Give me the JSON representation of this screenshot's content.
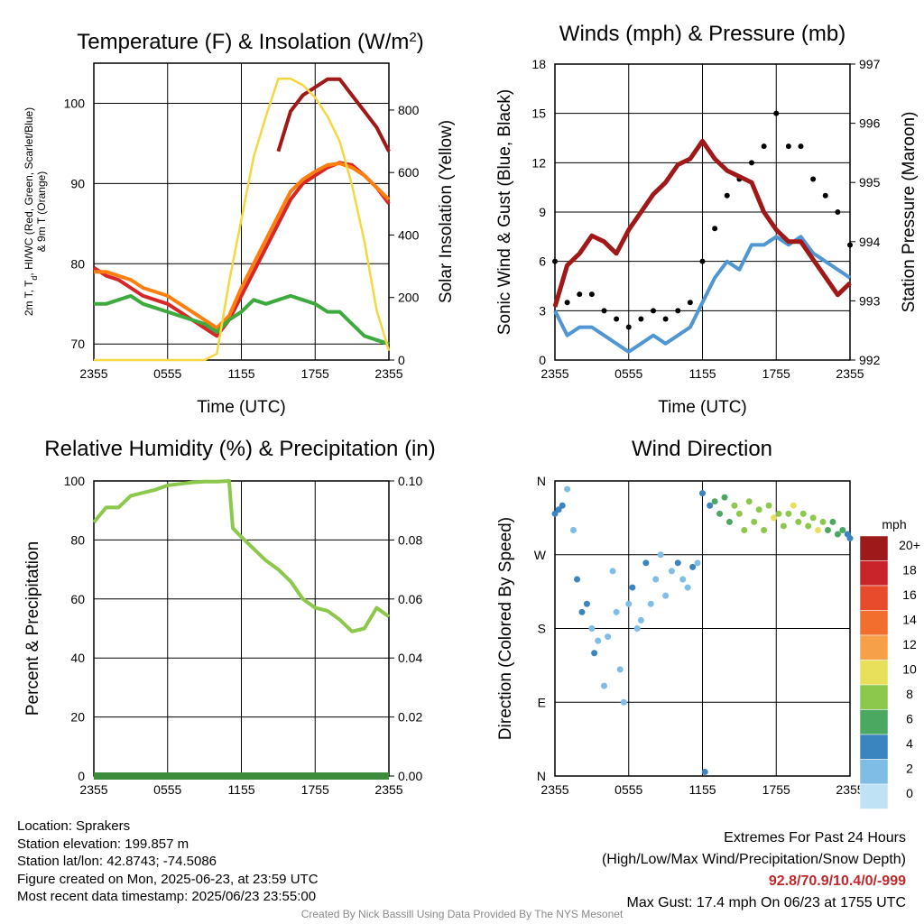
{
  "chart_data": [
    {
      "type": "line",
      "title": "Temperature (F) & Insolation (W/m",
      "title_sup": "2",
      "title_end": ")",
      "xlabel": "Time (UTC)",
      "ylabel_left": [
        "2m T, T",
        "d",
        ", HI/WC (Red, Green, Scarlet/Blue)",
        "& 9m T (Orange)"
      ],
      "ylabel_right": "Solar Insolation (Yellow)",
      "x_ticks": [
        "2355",
        "0555",
        "1155",
        "1755",
        "2355"
      ],
      "ylim_left": [
        68,
        105
      ],
      "y_ticks_left": [
        70,
        80,
        90,
        100
      ],
      "ylim_right": [
        0,
        950
      ],
      "y_ticks_right": [
        0,
        200,
        400,
        600,
        800
      ],
      "series": [
        {
          "name": "2m T",
          "color": "#d62728",
          "axis": "left",
          "x": [
            0,
            1,
            2,
            3,
            4,
            5,
            6,
            7,
            8,
            9,
            10,
            11,
            12,
            13,
            14,
            15,
            16,
            17,
            18,
            19,
            20,
            21,
            22,
            23,
            24
          ],
          "values": [
            79.5,
            78.5,
            78,
            77,
            76,
            75.5,
            75,
            74,
            73,
            72,
            71,
            73,
            76,
            79,
            82,
            85,
            88,
            90,
            91,
            92,
            92.6,
            92.3,
            91,
            89.5,
            87.5
          ]
        },
        {
          "name": "9m T",
          "color": "#ff7f0e",
          "axis": "left",
          "x": [
            0,
            1,
            2,
            3,
            4,
            5,
            6,
            7,
            8,
            9,
            10,
            11,
            12,
            13,
            14,
            15,
            16,
            17,
            18,
            19,
            20,
            21,
            22,
            23,
            24
          ],
          "values": [
            79,
            79,
            78.5,
            78,
            77,
            76.5,
            76,
            75,
            74,
            73,
            72,
            73.5,
            77,
            80,
            83,
            86,
            89,
            90.5,
            91.5,
            92.3,
            92.5,
            92,
            91,
            89.5,
            88
          ]
        },
        {
          "name": "Td",
          "color": "#3caa3c",
          "axis": "left",
          "x": [
            0,
            1,
            2,
            3,
            4,
            5,
            6,
            7,
            8,
            9,
            10,
            11,
            12,
            13,
            14,
            15,
            16,
            17,
            18,
            19,
            20,
            21,
            22,
            23,
            24
          ],
          "values": [
            75,
            75,
            75.5,
            76,
            75,
            74.5,
            74,
            73.5,
            73,
            72.5,
            71.5,
            73,
            74,
            75.5,
            75,
            75.5,
            76,
            75.5,
            75,
            74,
            74,
            72.5,
            71,
            70.5,
            70
          ]
        },
        {
          "name": "HI",
          "color": "#a01818",
          "axis": "left",
          "x": [
            15,
            16,
            17,
            18,
            19,
            20,
            21,
            22,
            23,
            24
          ],
          "values": [
            94,
            99,
            101,
            102,
            103,
            103,
            101,
            99,
            97,
            94
          ]
        },
        {
          "name": "Insolation",
          "color": "#f5d742",
          "axis": "right",
          "x": [
            0,
            1,
            2,
            3,
            4,
            5,
            6,
            7,
            8,
            9,
            10,
            11,
            12,
            13,
            14,
            15,
            16,
            17,
            18,
            19,
            20,
            21,
            22,
            23,
            24
          ],
          "values": [
            0,
            0,
            0,
            0,
            0,
            0,
            0,
            0,
            0,
            0,
            20,
            250,
            450,
            650,
            780,
            900,
            900,
            880,
            840,
            780,
            700,
            560,
            380,
            160,
            30
          ]
        }
      ]
    },
    {
      "type": "line",
      "title": "Winds (mph) & Pressure (mb)",
      "xlabel": "Time (UTC)",
      "ylabel_left": "Sonic Wind & Gust (Blue, Black)",
      "ylabel_right": "Station Pressure (Maroon)",
      "x_ticks": [
        "2355",
        "0555",
        "1155",
        "1755",
        "2355"
      ],
      "ylim_left": [
        0,
        18
      ],
      "y_ticks_left": [
        0,
        3,
        6,
        9,
        12,
        15,
        18
      ],
      "ylim_right": [
        992,
        997
      ],
      "y_ticks_right": [
        992,
        993,
        994,
        995,
        996,
        997
      ],
      "series": [
        {
          "name": "Wind",
          "color": "#4f96d2",
          "axis": "left",
          "x": [
            0,
            1,
            2,
            3,
            4,
            5,
            6,
            7,
            8,
            9,
            10,
            11,
            12,
            13,
            14,
            15,
            16,
            17,
            18,
            19,
            20,
            21,
            22,
            23,
            24
          ],
          "values": [
            3,
            1.5,
            2,
            2,
            1.5,
            1,
            0.5,
            1,
            1.5,
            1,
            1.5,
            2,
            3.5,
            5,
            6,
            5.5,
            7,
            7,
            7.5,
            7,
            7.5,
            6.5,
            6,
            5.5,
            5
          ]
        },
        {
          "name": "Gust",
          "color": "#000000",
          "axis": "left",
          "x": [
            0,
            1,
            2,
            3,
            4,
            5,
            6,
            7,
            8,
            9,
            10,
            11,
            12,
            13,
            14,
            15,
            16,
            17,
            18,
            19,
            20,
            21,
            22,
            23,
            24
          ],
          "values": [
            6,
            3.5,
            4,
            4,
            3,
            2.5,
            2,
            2.5,
            3,
            2.5,
            3,
            3.5,
            6,
            8,
            10,
            11,
            12,
            13,
            15,
            13,
            13,
            11,
            10,
            9,
            7
          ]
        },
        {
          "name": "Pressure",
          "color": "#a01818",
          "axis": "right",
          "x": [
            0,
            1,
            2,
            3,
            4,
            5,
            6,
            7,
            8,
            9,
            10,
            11,
            12,
            13,
            14,
            15,
            16,
            17,
            18,
            19,
            20,
            21,
            22,
            23,
            24
          ],
          "values": [
            992.9,
            993.6,
            993.8,
            994.1,
            994.0,
            993.8,
            994.2,
            994.5,
            994.8,
            995.0,
            995.3,
            995.4,
            995.7,
            995.4,
            995.2,
            995.1,
            995.0,
            994.5,
            994.2,
            994.0,
            994.0,
            993.7,
            993.4,
            993.1,
            993.3
          ]
        }
      ]
    },
    {
      "type": "line",
      "title": "Relative Humidity (%) & Precipitation (in)",
      "xlabel": "",
      "ylabel_left": "Percent & Precipitation",
      "x_ticks": [
        "2355",
        "0555",
        "1155",
        "1755",
        "2355"
      ],
      "ylim_left": [
        0,
        100
      ],
      "y_ticks_left": [
        0,
        20,
        40,
        60,
        80,
        100
      ],
      "ylim_right": [
        0,
        0.1
      ],
      "y_ticks_right": [
        "0.00",
        "0.02",
        "0.04",
        "0.06",
        "0.08",
        "0.10"
      ],
      "series": [
        {
          "name": "Relative Humidity",
          "color": "#8cc84b",
          "axis": "left",
          "x": [
            0,
            1,
            2,
            3,
            4,
            5,
            6,
            7,
            8,
            9,
            10,
            11,
            11.3,
            12,
            13,
            14,
            15,
            16,
            17,
            18,
            19,
            20,
            21,
            22,
            23,
            24
          ],
          "values": [
            86,
            91,
            91,
            95,
            96,
            97,
            98.5,
            99,
            99.5,
            99.8,
            99.8,
            100,
            84,
            81,
            77,
            73,
            70,
            66,
            60,
            57,
            56,
            53,
            49,
            50,
            57,
            54
          ]
        },
        {
          "name": "Precipitation",
          "color": "#3c8c3c",
          "axis": "right",
          "x": [
            0,
            24
          ],
          "values": [
            0,
            0
          ]
        }
      ]
    },
    {
      "type": "scatter",
      "title": "Wind Direction",
      "ylabel_left": "Direction (Colored By Speed)",
      "x_ticks": [
        "2355",
        "0555",
        "1155",
        "1755",
        "2355"
      ],
      "y_ticks_left": [
        "N",
        "E",
        "S",
        "W",
        "N"
      ],
      "ylim_left": [
        0,
        360
      ],
      "legend_title": "mph",
      "legend_labels": [
        "20+",
        "18",
        "16",
        "14",
        "12",
        "10",
        "8",
        "6",
        "4",
        "2",
        "0"
      ],
      "legend_colors": [
        "#9e1a1a",
        "#c8242a",
        "#e84a2c",
        "#f26e2e",
        "#f7a04a",
        "#e8e05a",
        "#8cc84b",
        "#4aa860",
        "#3a84c0",
        "#7fbce6",
        "#bfe3f5"
      ],
      "points": [
        {
          "x": 0.0,
          "dir": 320,
          "speed": 4
        },
        {
          "x": 0.3,
          "dir": 325,
          "speed": 4
        },
        {
          "x": 0.6,
          "dir": 330,
          "speed": 3
        },
        {
          "x": 1.0,
          "dir": 350,
          "speed": 1
        },
        {
          "x": 1.5,
          "dir": 300,
          "speed": 1
        },
        {
          "x": 1.8,
          "dir": 240,
          "speed": 3
        },
        {
          "x": 2.2,
          "dir": 200,
          "speed": 3
        },
        {
          "x": 2.6,
          "dir": 210,
          "speed": 3
        },
        {
          "x": 3.0,
          "dir": 180,
          "speed": 2
        },
        {
          "x": 3.2,
          "dir": 150,
          "speed": 3
        },
        {
          "x": 3.5,
          "dir": 165,
          "speed": 2
        },
        {
          "x": 4.0,
          "dir": 110,
          "speed": 1
        },
        {
          "x": 4.3,
          "dir": 170,
          "speed": 2
        },
        {
          "x": 4.7,
          "dir": 250,
          "speed": 1
        },
        {
          "x": 5.0,
          "dir": 200,
          "speed": 2
        },
        {
          "x": 5.3,
          "dir": 130,
          "speed": 2
        },
        {
          "x": 5.6,
          "dir": 90,
          "speed": 1
        },
        {
          "x": 6.0,
          "dir": 210,
          "speed": 1
        },
        {
          "x": 6.3,
          "dir": 230,
          "speed": 3
        },
        {
          "x": 6.7,
          "dir": 180,
          "speed": 1
        },
        {
          "x": 7.0,
          "dir": 190,
          "speed": 1
        },
        {
          "x": 7.4,
          "dir": 260,
          "speed": 3
        },
        {
          "x": 7.8,
          "dir": 210,
          "speed": 1
        },
        {
          "x": 8.2,
          "dir": 240,
          "speed": 1
        },
        {
          "x": 8.6,
          "dir": 270,
          "speed": 2
        },
        {
          "x": 9.0,
          "dir": 220,
          "speed": 1
        },
        {
          "x": 9.5,
          "dir": 250,
          "speed": 2
        },
        {
          "x": 10.0,
          "dir": 260,
          "speed": 3
        },
        {
          "x": 10.4,
          "dir": 240,
          "speed": 2
        },
        {
          "x": 10.8,
          "dir": 230,
          "speed": 2
        },
        {
          "x": 11.2,
          "dir": 255,
          "speed": 3
        },
        {
          "x": 11.6,
          "dir": 260,
          "speed": 2
        },
        {
          "x": 12.0,
          "dir": 345,
          "speed": 4
        },
        {
          "x": 12.2,
          "dir": 5,
          "speed": 4
        },
        {
          "x": 12.6,
          "dir": 330,
          "speed": 4
        },
        {
          "x": 13.0,
          "dir": 335,
          "speed": 5
        },
        {
          "x": 13.4,
          "dir": 320,
          "speed": 5
        },
        {
          "x": 13.8,
          "dir": 340,
          "speed": 6
        },
        {
          "x": 14.2,
          "dir": 310,
          "speed": 6
        },
        {
          "x": 14.6,
          "dir": 330,
          "speed": 7
        },
        {
          "x": 15.0,
          "dir": 320,
          "speed": 7
        },
        {
          "x": 15.4,
          "dir": 300,
          "speed": 7
        },
        {
          "x": 15.8,
          "dir": 335,
          "speed": 8
        },
        {
          "x": 16.2,
          "dir": 310,
          "speed": 8
        },
        {
          "x": 16.6,
          "dir": 325,
          "speed": 8
        },
        {
          "x": 17.0,
          "dir": 300,
          "speed": 7
        },
        {
          "x": 17.4,
          "dir": 330,
          "speed": 8
        },
        {
          "x": 17.8,
          "dir": 315,
          "speed": 9
        },
        {
          "x": 18.2,
          "dir": 320,
          "speed": 8
        },
        {
          "x": 18.6,
          "dir": 305,
          "speed": 7
        },
        {
          "x": 19.0,
          "dir": 320,
          "speed": 8
        },
        {
          "x": 19.4,
          "dir": 330,
          "speed": 10
        },
        {
          "x": 19.8,
          "dir": 310,
          "speed": 8
        },
        {
          "x": 20.2,
          "dir": 320,
          "speed": 8
        },
        {
          "x": 20.6,
          "dir": 305,
          "speed": 7
        },
        {
          "x": 21.0,
          "dir": 315,
          "speed": 8
        },
        {
          "x": 21.4,
          "dir": 300,
          "speed": 9
        },
        {
          "x": 21.8,
          "dir": 310,
          "speed": 7
        },
        {
          "x": 22.2,
          "dir": 300,
          "speed": 6
        },
        {
          "x": 22.6,
          "dir": 310,
          "speed": 6
        },
        {
          "x": 23.0,
          "dir": 295,
          "speed": 5
        },
        {
          "x": 23.4,
          "dir": 300,
          "speed": 5
        },
        {
          "x": 23.8,
          "dir": 295,
          "speed": 4
        },
        {
          "x": 24.0,
          "dir": 290,
          "speed": 4
        }
      ]
    }
  ],
  "footer": {
    "location": "Location: Sprakers",
    "elevation": "Station elevation: 199.857 m",
    "latlon": "Station lat/lon: 42.8743; -74.5086",
    "created": "Figure created on Mon, 2025-06-23, at 23:59 UTC",
    "recent": "Most recent data timestamp: 2025/06/23 23:55:00",
    "extremes_title": "Extremes For Past 24 Hours",
    "extremes_legend": "(High/Low/Max Wind/Precipitation/Snow Depth)",
    "extremes_values": "92.8/70.9/10.4/0/-999",
    "max_gust": "Max Gust: 17.4 mph On 06/23 at 1755 UTC",
    "credit": "Created By Nick Bassill Using Data Provided By The NYS Mesonet"
  }
}
